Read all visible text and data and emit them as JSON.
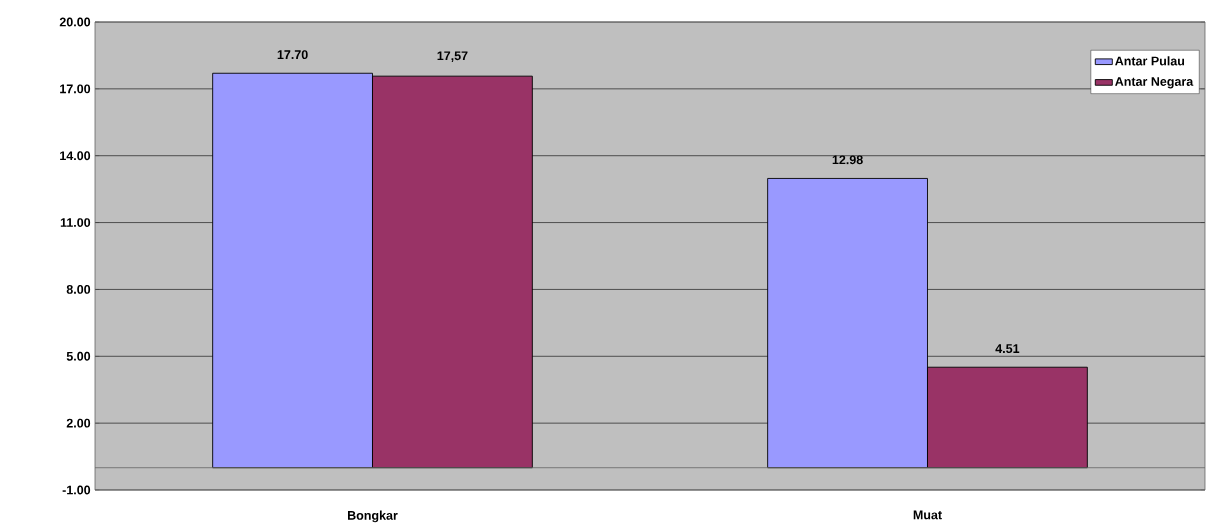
{
  "chart_data": {
    "type": "bar",
    "categories": [
      "Bongkar",
      "Muat"
    ],
    "series": [
      {
        "name": "Antar Pulau",
        "color": "#9999ff",
        "values": [
          17.7,
          12.98
        ],
        "value_labels": [
          "17.70",
          "12.98"
        ]
      },
      {
        "name": "Antar Negara",
        "color": "#993366",
        "values": [
          17.57,
          4.51
        ],
        "value_labels": [
          "17,57",
          "4.51"
        ]
      }
    ],
    "ylim": [
      -1,
      20
    ],
    "yticks": [
      {
        "value": -1,
        "label": "-1.00"
      },
      {
        "value": 2,
        "label": "2.00"
      },
      {
        "value": 5,
        "label": "5.00"
      },
      {
        "value": 8,
        "label": "8.00"
      },
      {
        "value": 11,
        "label": "11.00"
      },
      {
        "value": 14,
        "label": "14.00"
      },
      {
        "value": 17,
        "label": "17.00"
      },
      {
        "value": 20,
        "label": "20.00"
      }
    ],
    "grid": "y",
    "legend": "top right"
  }
}
